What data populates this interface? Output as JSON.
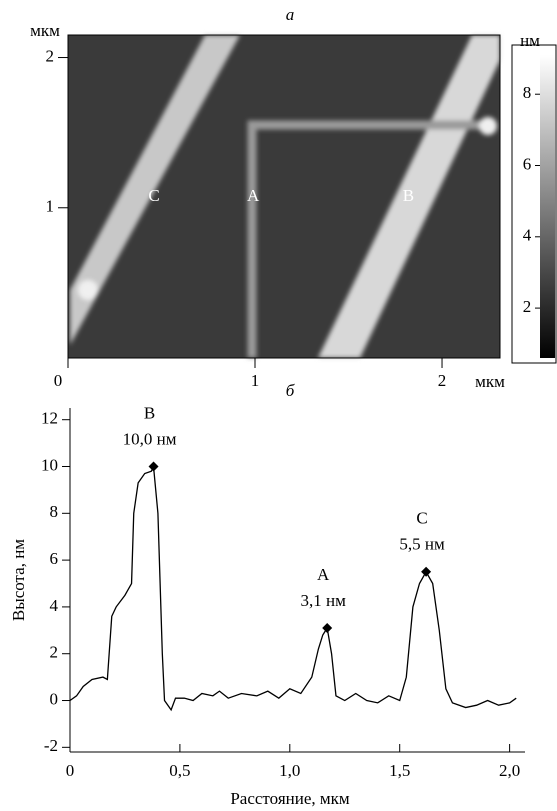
{
  "chart_data": [
    {
      "type": "image",
      "title": "а",
      "y_unit": "мкм",
      "x_unit": "мкм",
      "xlim": [
        0,
        2.31
      ],
      "ylim": [
        0,
        2.15
      ],
      "xticks": [
        0,
        1,
        2
      ],
      "yticks": [
        1,
        2
      ],
      "feature_labels": [
        {
          "text": "C",
          "x": 0.46,
          "y": 1.07
        },
        {
          "text": "A",
          "x": 0.99,
          "y": 1.07
        },
        {
          "text": "B",
          "x": 1.82,
          "y": 1.07
        }
      ],
      "colorbar": {
        "label": "нм",
        "lim": [
          0.6,
          9.1
        ],
        "ticks": [
          2,
          4,
          6,
          8
        ]
      }
    },
    {
      "type": "line",
      "title": "б",
      "xlabel": "Расстояние, мкм",
      "ylabel": "Высота, нм",
      "xlim": [
        0,
        2.07
      ],
      "ylim": [
        -2.2,
        12.5
      ],
      "xticks": [
        0,
        {
          "value": 0.5,
          "label": "0,5"
        },
        {
          "value": 1.0,
          "label": "1,0"
        },
        {
          "value": 1.5,
          "label": "1,5"
        },
        {
          "value": 2.0,
          "label": "2,0"
        }
      ],
      "yticks": [
        -2,
        0,
        2,
        4,
        6,
        8,
        10,
        12
      ],
      "series": [
        {
          "color": "#000000",
          "x": [
            0,
            0.03,
            0.06,
            0.1,
            0.15,
            0.17,
            0.19,
            0.21,
            0.25,
            0.28,
            0.29,
            0.31,
            0.34,
            0.37,
            0.38,
            0.4,
            0.42,
            0.43,
            0.46,
            0.48,
            0.52,
            0.56,
            0.6,
            0.65,
            0.68,
            0.72,
            0.78,
            0.85,
            0.9,
            0.95,
            1.0,
            1.05,
            1.1,
            1.13,
            1.15,
            1.17,
            1.19,
            1.21,
            1.25,
            1.3,
            1.35,
            1.4,
            1.45,
            1.5,
            1.53,
            1.56,
            1.59,
            1.62,
            1.65,
            1.68,
            1.71,
            1.74,
            1.8,
            1.85,
            1.9,
            1.95,
            2.0,
            2.03
          ],
          "values": [
            0,
            0.2,
            0.6,
            0.9,
            1.0,
            0.9,
            3.6,
            4.0,
            4.5,
            5.0,
            8.0,
            9.3,
            9.7,
            9.8,
            10.0,
            8.0,
            2.0,
            0.0,
            -0.4,
            0.1,
            0.1,
            0.0,
            0.3,
            0.2,
            0.4,
            0.1,
            0.3,
            0.2,
            0.4,
            0.1,
            0.5,
            0.3,
            1.0,
            2.2,
            2.8,
            3.1,
            2.0,
            0.2,
            0.0,
            0.3,
            0.0,
            -0.1,
            0.2,
            0.0,
            1.0,
            4.0,
            5.0,
            5.5,
            5.0,
            3.0,
            0.5,
            -0.1,
            -0.3,
            -0.2,
            0.0,
            -0.2,
            -0.1,
            0.1
          ]
        }
      ],
      "annotations": [
        {
          "letter": "B",
          "label": "10,0 нм",
          "x": 0.38,
          "y": 10.0
        },
        {
          "letter": "A",
          "label": "3,1 нм",
          "x": 1.17,
          "y": 3.1
        },
        {
          "letter": "C",
          "label": "5,5 нм",
          "x": 1.62,
          "y": 5.5
        }
      ]
    }
  ]
}
